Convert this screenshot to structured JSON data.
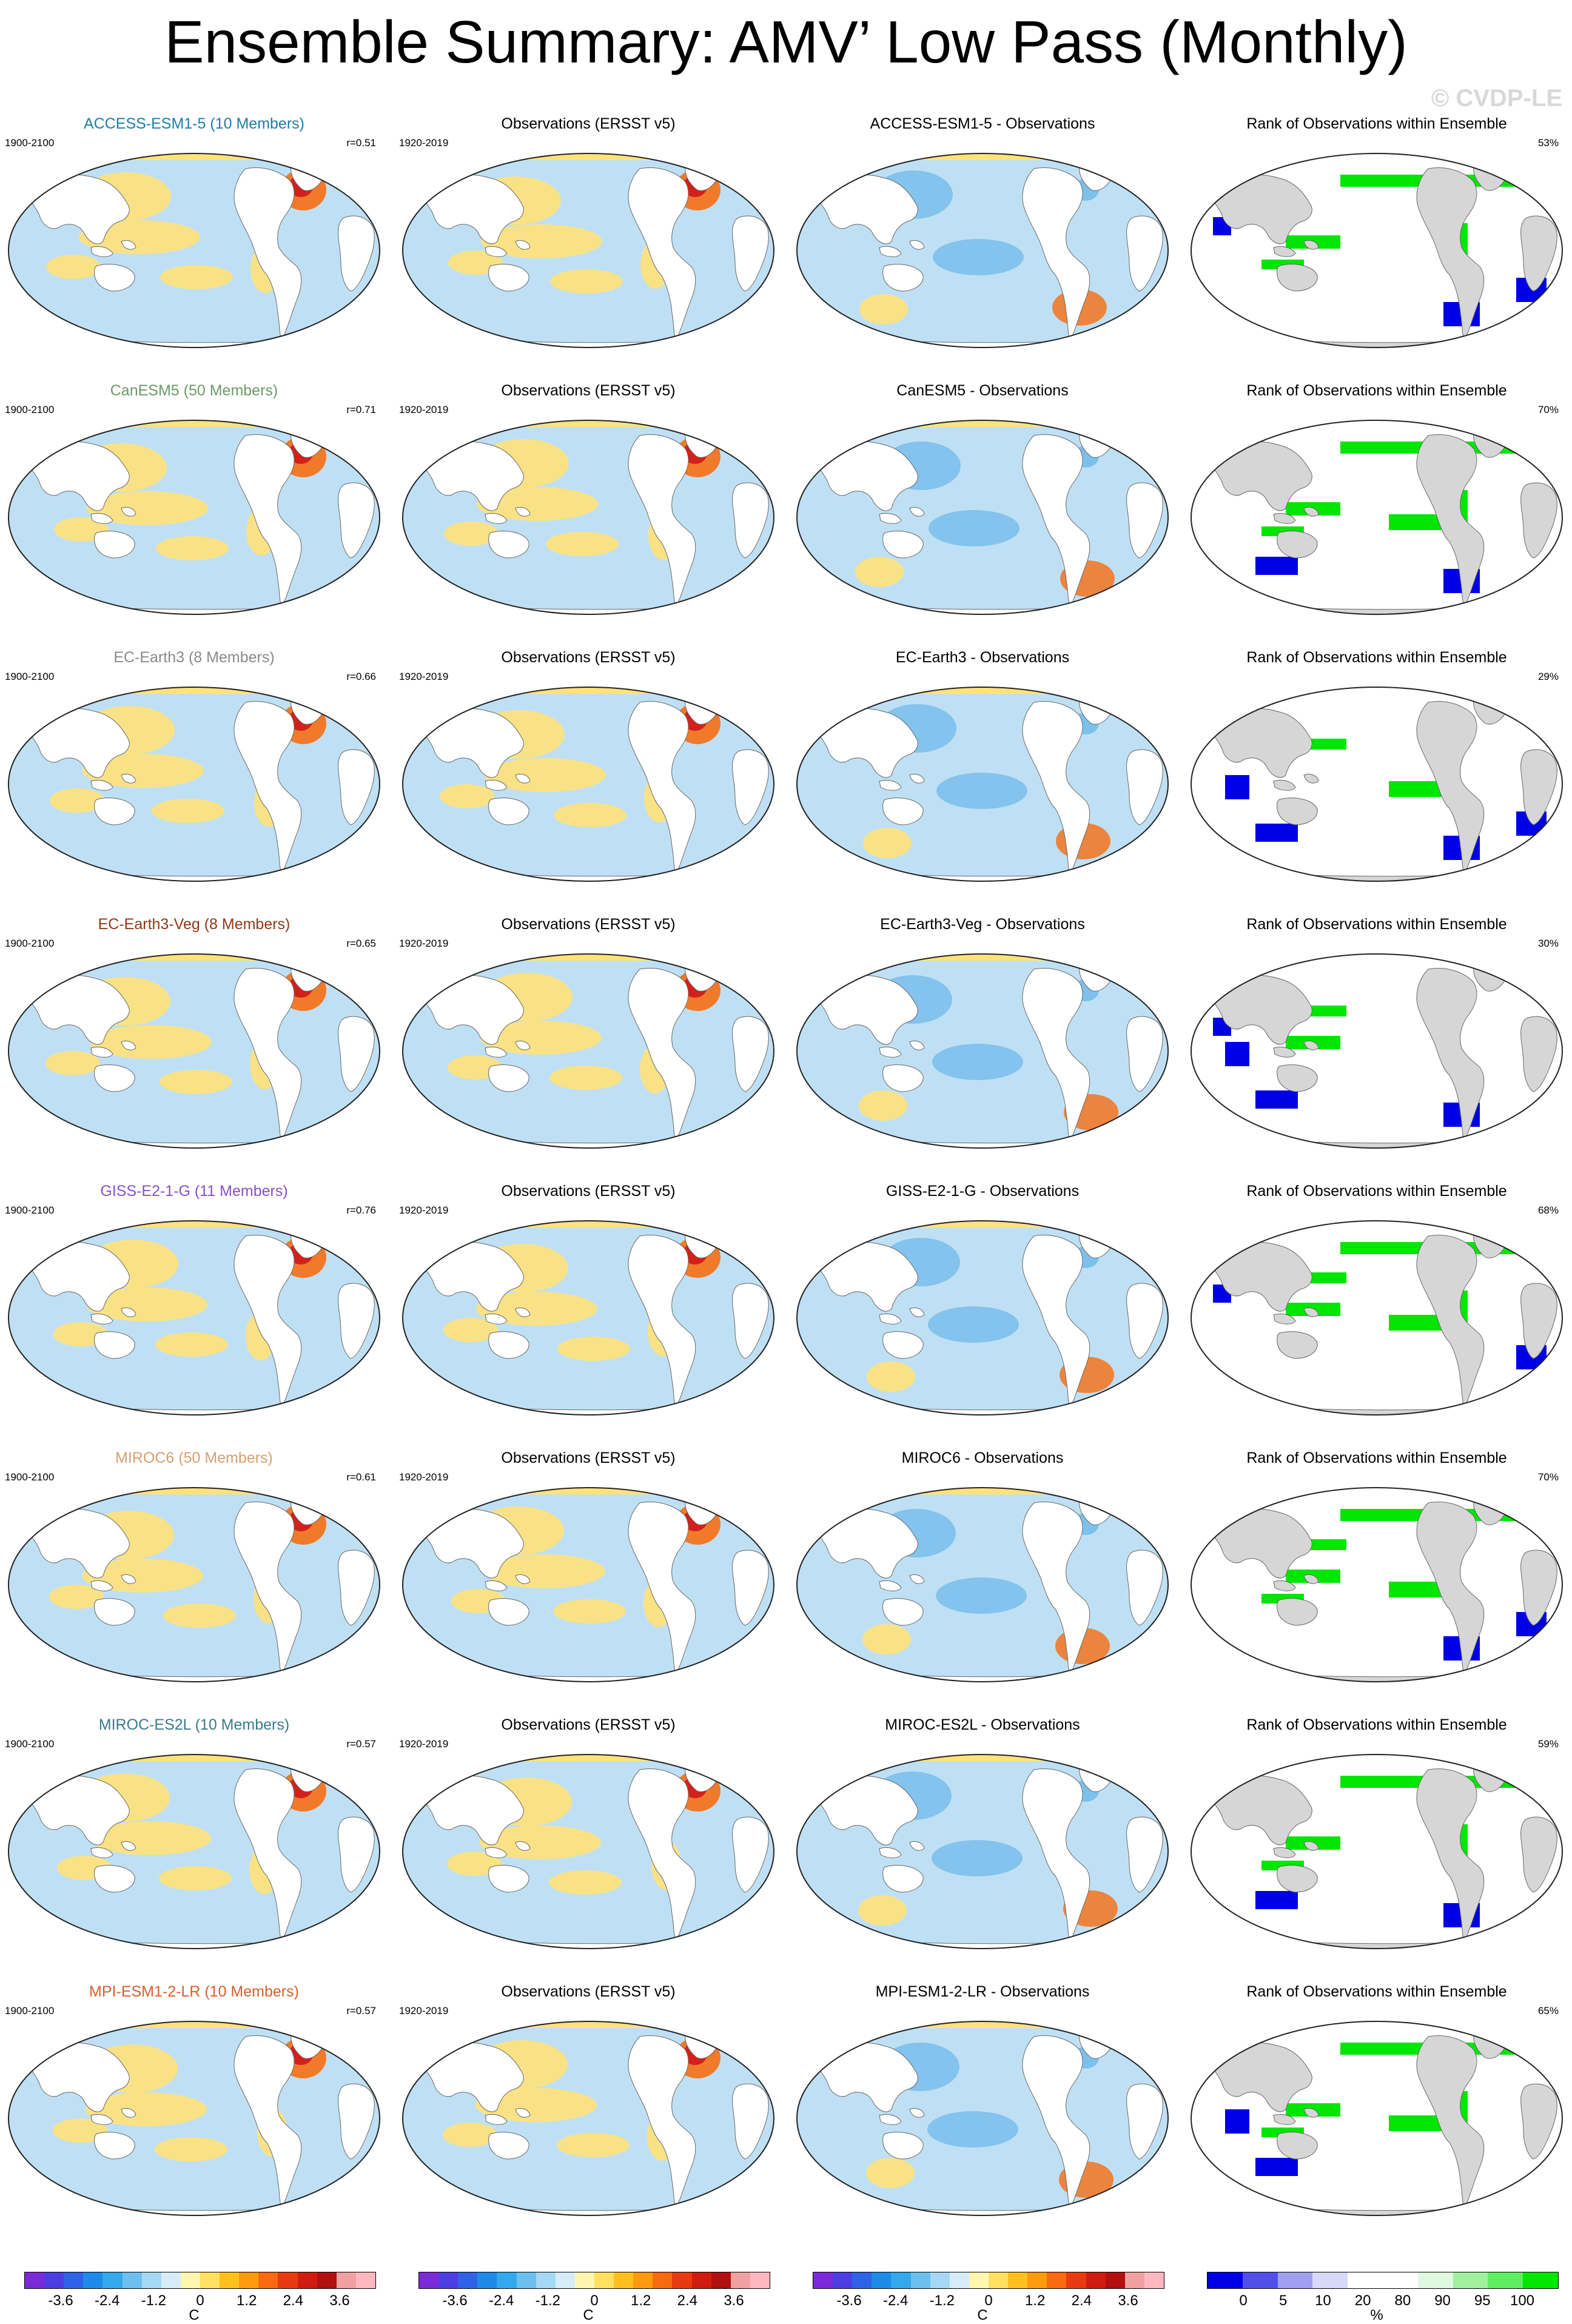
{
  "title": "Ensemble Summary: AMV’ Low Pass (Monthly)",
  "watermark": "© CVDP-LE",
  "obs_title": "Observations (ERSST v5)",
  "obs_years": "1920-2019",
  "rank_title": "Rank of Observations within Ensemble",
  "rows": [
    {
      "model_title": "ACCESS-ESM1-5 (10 Members)",
      "model_color": "#1a7ea8",
      "years": "1900-2100",
      "r": "r=0.51",
      "diff_title": "ACCESS-ESM1-5 - Observations",
      "rank_pct": "53%",
      "rank_fill": 0.53
    },
    {
      "model_title": "CanESM5 (50 Members)",
      "model_color": "#6a9a6a",
      "years": "1900-2100",
      "r": "r=0.71",
      "diff_title": "CanESM5 - Observations",
      "rank_pct": "70%",
      "rank_fill": 0.7
    },
    {
      "model_title": "EC-Earth3 (8 Members)",
      "model_color": "#8a8a8a",
      "years": "1900-2100",
      "r": "r=0.66",
      "diff_title": "EC-Earth3 - Observations",
      "rank_pct": "29%",
      "rank_fill": 0.29
    },
    {
      "model_title": "EC-Earth3-Veg (8 Members)",
      "model_color": "#8b3a1a",
      "years": "1900-2100",
      "r": "r=0.65",
      "diff_title": "EC-Earth3-Veg - Observations",
      "rank_pct": "30%",
      "rank_fill": 0.3
    },
    {
      "model_title": "GISS-E2-1-G (11 Members)",
      "model_color": "#8a4fc8",
      "years": "1900-2100",
      "r": "r=0.76",
      "diff_title": "GISS-E2-1-G - Observations",
      "rank_pct": "68%",
      "rank_fill": 0.68
    },
    {
      "model_title": "MIROC6 (50 Members)",
      "model_color": "#d6a070",
      "years": "1900-2100",
      "r": "r=0.61",
      "diff_title": "MIROC6 - Observations",
      "rank_pct": "70%",
      "rank_fill": 0.7
    },
    {
      "model_title": "MIROC-ES2L (10 Members)",
      "model_color": "#3a7a8a",
      "years": "1900-2100",
      "r": "r=0.57",
      "diff_title": "MIROC-ES2L - Observations",
      "rank_pct": "59%",
      "rank_fill": 0.59
    },
    {
      "model_title": "MPI-ESM1-2-LR (10 Members)",
      "model_color": "#d4602a",
      "years": "1900-2100",
      "r": "r=0.57",
      "diff_title": "MPI-ESM1-2-LR - Observations",
      "rank_pct": "65%",
      "rank_fill": 0.65
    }
  ],
  "temp_colorbar": {
    "colors": [
      "#7b2ad8",
      "#4c3ee0",
      "#2f63e6",
      "#1f8be8",
      "#34a8ec",
      "#6cc0f0",
      "#a6d8f4",
      "#d6ecf8",
      "#fff6b0",
      "#ffe060",
      "#ffc020",
      "#ff9a10",
      "#f86a10",
      "#e83a10",
      "#d01c10",
      "#b01010",
      "#f0a0a0",
      "#ffb8c0"
    ],
    "ticks": [
      "-3.6",
      "-2.4",
      "-1.2",
      "0",
      "1.2",
      "2.4",
      "3.6"
    ],
    "unit": "C"
  },
  "rank_colorbar": {
    "colors": [
      "#0000e6",
      "#5050e8",
      "#a0a0f0",
      "#d8d8f8",
      "#ffffff",
      "#ffffff",
      "#e0f8e0",
      "#a0f0a0",
      "#60ee60",
      "#00e600"
    ],
    "ticks": [
      "0",
      "5",
      "10",
      "20",
      "80",
      "90",
      "95",
      "100"
    ],
    "unit": "%"
  },
  "map_colors": {
    "ocean_base": "#bfe0f4",
    "warm": "#ffe27a",
    "hot": "#f07a2a",
    "hottest": "#d4201a",
    "cool": "#7cc0ec",
    "land": "#ffffff",
    "rank_land": "#d6d6d6",
    "rank_low": "#0000e6",
    "rank_high": "#00e600"
  }
}
